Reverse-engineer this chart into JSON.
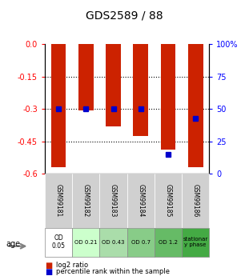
{
  "title": "GDS2589 / 88",
  "samples": [
    "GSM99181",
    "GSM99182",
    "GSM99183",
    "GSM99184",
    "GSM99185",
    "GSM99186"
  ],
  "bar_values": [
    -0.57,
    -0.305,
    -0.38,
    -0.425,
    -0.488,
    -0.57
  ],
  "percentile_values": [
    50,
    50,
    50,
    50,
    15,
    43
  ],
  "age_labels": [
    "OD\n0.05",
    "OD 0.21",
    "OD 0.43",
    "OD 0.7",
    "OD 1.2",
    "stationar\ny phase"
  ],
  "age_colors": [
    "#ffffff",
    "#ccffcc",
    "#aaddaa",
    "#88cc88",
    "#66bb66",
    "#44aa44"
  ],
  "ylim_left": [
    -0.6,
    0.0
  ],
  "ylim_right": [
    0,
    100
  ],
  "yticks_left": [
    0.0,
    -0.15,
    -0.3,
    -0.45,
    -0.6
  ],
  "yticks_right": [
    100,
    75,
    50,
    25,
    0
  ],
  "bar_color": "#cc2200",
  "dot_color": "#0000cc",
  "legend_red": "log2 ratio",
  "legend_blue": "percentile rank within the sample"
}
